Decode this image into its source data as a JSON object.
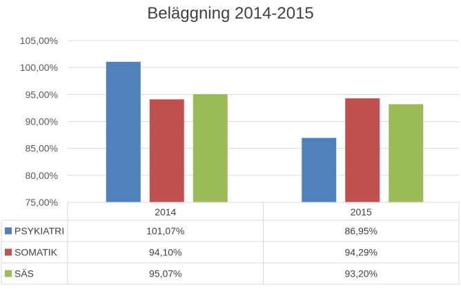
{
  "chart_data": {
    "type": "bar",
    "title": "Beläggning 2014-2015",
    "categories": [
      "2014",
      "2015"
    ],
    "series": [
      {
        "name": "PSYKIATRI",
        "color": "#4f81bd",
        "values": [
          101.07,
          86.95
        ],
        "labels": [
          "101,07%",
          "86,95%"
        ]
      },
      {
        "name": "SOMATIK",
        "color": "#c0504d",
        "values": [
          94.1,
          94.29
        ],
        "labels": [
          "94,10%",
          "94,29%"
        ]
      },
      {
        "name": "SÄS",
        "color": "#9bbb59",
        "values": [
          95.07,
          93.2
        ],
        "labels": [
          "95,07%",
          "93,20%"
        ]
      }
    ],
    "ylim": [
      75,
      105
    ],
    "yticks": [
      75,
      80,
      85,
      90,
      95,
      100,
      105
    ],
    "ytick_labels": [
      "75,00%",
      "80,00%",
      "85,00%",
      "90,00%",
      "95,00%",
      "100,00%",
      "105,00%"
    ],
    "grid": true,
    "legend": "data-table"
  }
}
